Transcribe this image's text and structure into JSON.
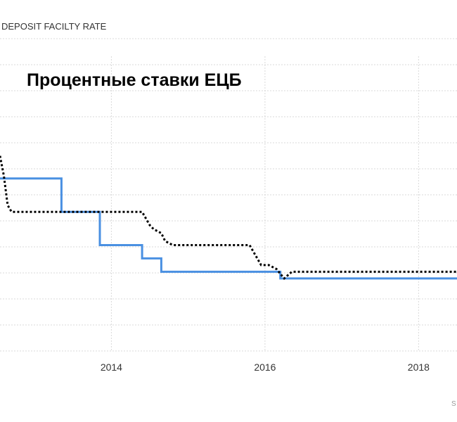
{
  "chart_data": {
    "type": "line",
    "title": "Процентные ставки ЕЦБ",
    "legend_label": "DEPOSIT FACILTY RATE",
    "source_fragment": "S",
    "xlabel": "",
    "ylabel": "",
    "x_ticks": [
      "2014",
      "2016",
      "2018"
    ],
    "x_tick_values": [
      2014,
      2016,
      2018
    ],
    "xlim": [
      2012.55,
      2018.5
    ],
    "ylim": [
      -0.55,
      1.8
    ],
    "grid": true,
    "series": [
      {
        "colors": "#4a90e2",
        "style": "solid",
        "points": [
          [
            2012.55,
            0.75
          ],
          [
            2013.35,
            0.75
          ],
          [
            2013.35,
            0.5
          ],
          [
            2013.85,
            0.5
          ],
          [
            2013.85,
            0.25
          ],
          [
            2014.4,
            0.25
          ],
          [
            2014.4,
            0.15
          ],
          [
            2014.65,
            0.15
          ],
          [
            2014.65,
            0.05
          ],
          [
            2016.2,
            0.05
          ],
          [
            2016.2,
            0.0
          ],
          [
            2018.5,
            0.0
          ]
        ]
      },
      {
        "colors": "#000000",
        "style": "dotted",
        "points": [
          [
            2012.55,
            0.92
          ],
          [
            2012.6,
            0.77
          ],
          [
            2012.65,
            0.55
          ],
          [
            2012.7,
            0.5
          ],
          [
            2013.9,
            0.5
          ],
          [
            2014.4,
            0.5
          ],
          [
            2014.5,
            0.4
          ],
          [
            2014.55,
            0.37
          ],
          [
            2014.65,
            0.34
          ],
          [
            2014.7,
            0.28
          ],
          [
            2014.8,
            0.25
          ],
          [
            2015.8,
            0.25
          ],
          [
            2015.85,
            0.2
          ],
          [
            2015.95,
            0.1
          ],
          [
            2016.05,
            0.1
          ],
          [
            2016.15,
            0.07
          ],
          [
            2016.25,
            0.0
          ],
          [
            2016.35,
            0.05
          ],
          [
            2018.5,
            0.05
          ]
        ]
      }
    ]
  }
}
